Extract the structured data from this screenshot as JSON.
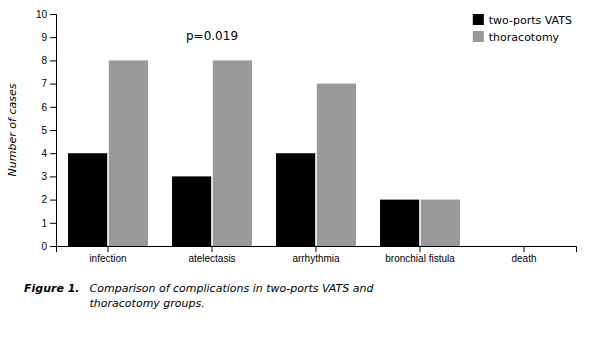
{
  "chart_data": {
    "type": "bar",
    "categories": [
      "infection",
      "atelectasis",
      "arrhythmia",
      "bronchial fistula",
      "death"
    ],
    "series": [
      {
        "name": "two-ports VATS",
        "color": "#000000",
        "values": [
          4,
          3,
          4,
          2,
          0
        ]
      },
      {
        "name": "thoracotomy",
        "color": "#999999",
        "values": [
          8,
          8,
          7,
          2,
          0
        ]
      }
    ],
    "ylabel": "Number of cases",
    "ylim": [
      0,
      10
    ],
    "yticks": [
      0,
      1,
      2,
      3,
      4,
      5,
      6,
      7,
      8,
      9,
      10
    ],
    "legend": "upper right",
    "annotations": [
      {
        "text": "p=0.019",
        "x": "atelectasis",
        "y": 8.8
      }
    ],
    "caption": {
      "label": "Figure 1.",
      "text": "Comparison of complications in two-ports VATS and\nthoracotomy groups."
    }
  }
}
